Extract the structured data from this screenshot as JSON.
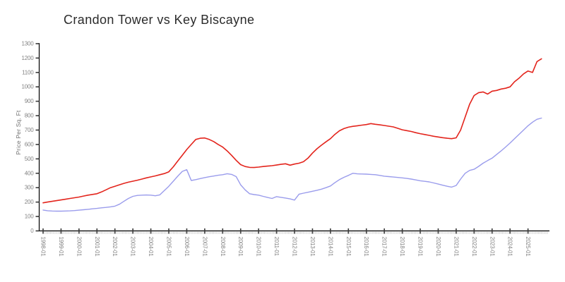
{
  "title": "Crandon Tower vs Key Biscayne",
  "y_axis_title": "Price Per Sq. Ft",
  "colors": {
    "series1_red": "#e3241c",
    "series2_blue": "#9a9cec",
    "axis_line": "#000000",
    "major_tick": "#3a3a3a",
    "minor_tick": "#c4c4c4",
    "tick_label": "#828282",
    "title_text": "#2b2b2b"
  },
  "chart_data": {
    "type": "line",
    "title": "Crandon Tower vs Key Biscayne",
    "xlabel": "",
    "ylabel": "Price Per Sq. Ft",
    "ylim": [
      0,
      1300
    ],
    "y_ticks": [
      0,
      100,
      200,
      300,
      400,
      500,
      600,
      700,
      800,
      900,
      1000,
      1100,
      1200,
      1300
    ],
    "x_axis_tick_labels": [
      "1998-01",
      "1999-01",
      "2000-01",
      "2001-01",
      "2002-01",
      "2003-01",
      "2004-01",
      "2005-01",
      "2006-01",
      "2007-01",
      "2008-01",
      "2009-01",
      "2010-01",
      "2011-01",
      "2012-01",
      "2013-01",
      "2014-01",
      "2015-01",
      "2016-01",
      "2017-01",
      "2018-01",
      "2019-01",
      "2020-01",
      "2021-01",
      "2022-01",
      "2023-01",
      "2024-01",
      "2025-01"
    ],
    "grid": false,
    "legend_position": "none",
    "x": [
      "1998-01",
      "1998-04",
      "1998-07",
      "1998-10",
      "1999-01",
      "1999-04",
      "1999-07",
      "1999-10",
      "2000-01",
      "2000-04",
      "2000-07",
      "2000-10",
      "2001-01",
      "2001-04",
      "2001-07",
      "2001-10",
      "2002-01",
      "2002-04",
      "2002-07",
      "2002-10",
      "2003-01",
      "2003-04",
      "2003-07",
      "2003-10",
      "2004-01",
      "2004-04",
      "2004-07",
      "2004-10",
      "2005-01",
      "2005-04",
      "2005-07",
      "2005-10",
      "2006-01",
      "2006-04",
      "2006-07",
      "2006-10",
      "2007-01",
      "2007-04",
      "2007-07",
      "2007-10",
      "2008-01",
      "2008-04",
      "2008-07",
      "2008-10",
      "2009-01",
      "2009-04",
      "2009-07",
      "2009-10",
      "2010-01",
      "2010-04",
      "2010-07",
      "2010-10",
      "2011-01",
      "2011-04",
      "2011-07",
      "2011-10",
      "2012-01",
      "2012-04",
      "2012-07",
      "2012-10",
      "2013-01",
      "2013-04",
      "2013-07",
      "2013-10",
      "2014-01",
      "2014-04",
      "2014-07",
      "2014-10",
      "2015-01",
      "2015-04",
      "2015-07",
      "2015-10",
      "2016-01",
      "2016-04",
      "2016-07",
      "2016-10",
      "2017-01",
      "2017-04",
      "2017-07",
      "2017-10",
      "2018-01",
      "2018-04",
      "2018-07",
      "2018-10",
      "2019-01",
      "2019-04",
      "2019-07",
      "2019-10",
      "2020-01",
      "2020-04",
      "2020-07",
      "2020-10",
      "2021-01",
      "2021-04",
      "2021-07",
      "2021-10",
      "2022-01",
      "2022-04",
      "2022-07",
      "2022-10",
      "2023-01",
      "2023-04",
      "2023-07",
      "2023-10",
      "2024-01",
      "2024-04",
      "2024-07",
      "2024-10",
      "2025-01",
      "2025-04",
      "2025-07",
      "2025-10"
    ],
    "series": [
      {
        "name": "Crandon Tower",
        "color": "#e3241c",
        "values": [
          195,
          200,
          205,
          210,
          215,
          220,
          225,
          230,
          235,
          242,
          248,
          253,
          258,
          270,
          285,
          300,
          310,
          320,
          330,
          338,
          345,
          352,
          360,
          368,
          375,
          382,
          390,
          398,
          410,
          445,
          485,
          525,
          565,
          600,
          635,
          643,
          645,
          635,
          620,
          600,
          582,
          555,
          524,
          490,
          460,
          447,
          441,
          440,
          443,
          447,
          450,
          453,
          457,
          462,
          466,
          456,
          464,
          470,
          480,
          505,
          540,
          570,
          595,
          618,
          640,
          670,
          695,
          710,
          720,
          726,
          730,
          734,
          738,
          745,
          740,
          736,
          732,
          727,
          722,
          712,
          702,
          696,
          690,
          682,
          675,
          669,
          663,
          657,
          652,
          647,
          643,
          640,
          646,
          700,
          790,
          880,
          940,
          960,
          965,
          950,
          970,
          975,
          985,
          990,
          1000,
          1035,
          1060,
          1090,
          1110,
          1100,
          1175,
          1195
        ]
      },
      {
        "name": "Key Biscayne",
        "color": "#9a9cec",
        "values": [
          145,
          140,
          138,
          137,
          137,
          138,
          139,
          141,
          144,
          147,
          150,
          153,
          156,
          160,
          163,
          167,
          172,
          185,
          205,
          225,
          240,
          246,
          248,
          249,
          248,
          244,
          250,
          280,
          310,
          345,
          380,
          413,
          425,
          350,
          356,
          363,
          370,
          376,
          381,
          386,
          390,
          397,
          392,
          377,
          320,
          285,
          258,
          252,
          248,
          240,
          232,
          225,
          238,
          233,
          228,
          222,
          214,
          255,
          262,
          268,
          275,
          282,
          290,
          300,
          312,
          335,
          356,
          372,
          385,
          400,
          396,
          395,
          394,
          392,
          390,
          385,
          380,
          377,
          374,
          371,
          368,
          364,
          360,
          354,
          348,
          344,
          340,
          333,
          325,
          317,
          310,
          304,
          315,
          360,
          400,
          420,
          428,
          448,
          470,
          488,
          505,
          530,
          555,
          582,
          610,
          640,
          670,
          700,
          730,
          755,
          775,
          783
        ]
      }
    ]
  }
}
